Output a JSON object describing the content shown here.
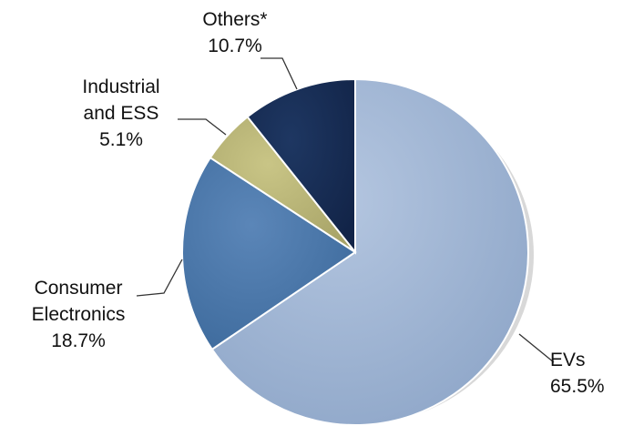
{
  "chart_data": {
    "type": "pie",
    "title": "",
    "start": "12 o'clock",
    "direction": "clockwise",
    "slices": [
      {
        "name": "EVs",
        "label_lines": [
          "EVs"
        ],
        "value": 65.5,
        "percent_label": "65.5%",
        "color": "#b4c6e0",
        "color_dark": "#8ea6c8"
      },
      {
        "name": "Consumer Electronics",
        "label_lines": [
          "Consumer",
          "Electronics"
        ],
        "value": 18.7,
        "percent_label": "18.7%",
        "color": "#5b86b8",
        "color_dark": "#3d6a9c"
      },
      {
        "name": "Industrial and ESS",
        "label_lines": [
          "Industrial",
          "and ESS"
        ],
        "value": 5.1,
        "percent_label": "5.1%",
        "color": "#c9c586",
        "color_dark": "#a8a468"
      },
      {
        "name": "Others*",
        "label_lines": [
          "Others*"
        ],
        "value": 10.7,
        "percent_label": "10.7%",
        "color": "#1e3762",
        "color_dark": "#122448"
      }
    ]
  }
}
